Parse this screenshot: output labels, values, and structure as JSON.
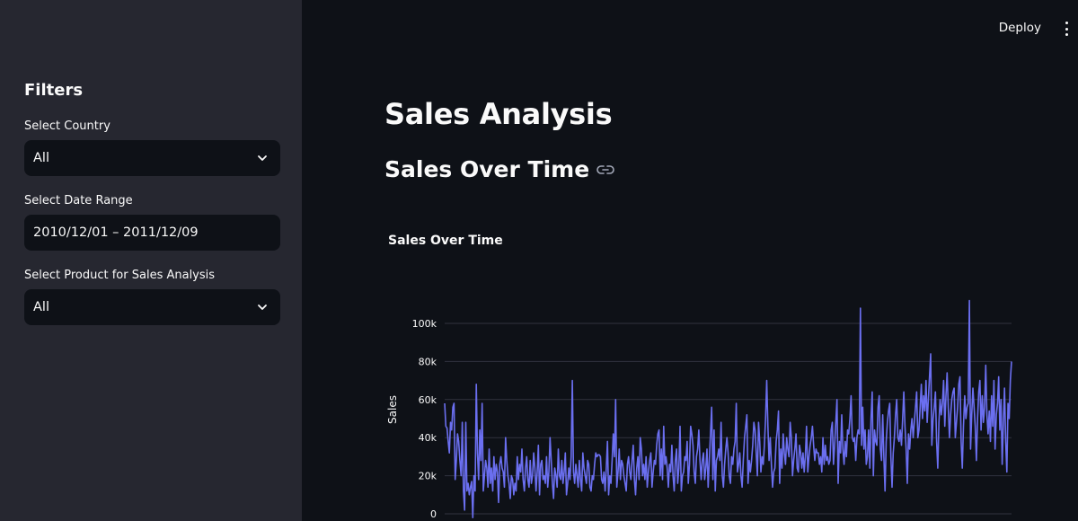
{
  "sidebar": {
    "title": "Filters",
    "country": {
      "label": "Select Country",
      "value": "All"
    },
    "date_range": {
      "label": "Select Date Range",
      "value": "2010/12/01 – 2011/12/09"
    },
    "product": {
      "label": "Select Product for Sales Analysis",
      "value": "All"
    }
  },
  "header": {
    "deploy_label": "Deploy"
  },
  "main": {
    "title": "Sales Analysis",
    "section_title": "Sales Over Time"
  },
  "colors": {
    "line": "#6b6ff0",
    "grid": "#31333f",
    "sidebar_bg": "#262730",
    "main_bg": "#0e1117"
  },
  "chart_data": {
    "type": "line",
    "title": "Sales Over Time",
    "xlabel": "",
    "ylabel": "Sales",
    "x_range": [
      "2010-12-01",
      "2011-12-09"
    ],
    "ylim": [
      0,
      110000
    ],
    "y_ticks": [
      0,
      20000,
      40000,
      60000,
      80000,
      100000
    ],
    "y_tick_labels": [
      "0",
      "20k",
      "40k",
      "60k",
      "80k",
      "100k"
    ],
    "grid": true,
    "series": [
      {
        "values": [
          58000,
          46000,
          45000,
          38000,
          32000,
          48000,
          44000,
          56000,
          58000,
          18000,
          28000,
          42000,
          38000,
          28000,
          20000,
          48000,
          12000,
          2000,
          48000,
          12000,
          16000,
          10000,
          14000,
          17000,
          -2000,
          20000,
          12000,
          68000,
          32000,
          18000,
          44000,
          28000,
          58000,
          12000,
          20000,
          28000,
          24000,
          14000,
          34000,
          16000,
          24000,
          12000,
          30000,
          18000,
          26000,
          22000,
          6000,
          26000,
          30000,
          24000,
          22000,
          14000,
          40000,
          28000,
          20000,
          16000,
          8000,
          20000,
          18000,
          10000,
          16000,
          12000,
          30000,
          18000,
          26000,
          22000,
          34000,
          18000,
          12000,
          24000,
          30000,
          18000,
          14000,
          28000,
          16000,
          20000,
          32000,
          24000,
          12000,
          22000,
          36000,
          10000,
          26000,
          28000,
          18000,
          20000,
          16000,
          30000,
          14000,
          22000,
          40000,
          28000,
          16000,
          8000,
          24000,
          20000,
          14000,
          34000,
          20000,
          18000,
          28000,
          16000,
          22000,
          32000,
          10000,
          16000,
          24000,
          18000,
          30000,
          70000,
          22000,
          16000,
          26000,
          20000,
          14000,
          28000,
          18000,
          12000,
          32000,
          24000,
          20000,
          16000,
          28000,
          26000,
          14000,
          12000,
          20000,
          18000,
          26000,
          32000,
          30000,
          31000,
          31000,
          30000,
          18000,
          16000,
          22000,
          12000,
          24000,
          38000,
          10000,
          20000,
          16000,
          28000,
          42000,
          30000,
          60000,
          14000,
          22000,
          34000,
          18000,
          28000,
          26000,
          20000,
          16000,
          12000,
          26000,
          30000,
          22000,
          18000,
          28000,
          36000,
          18000,
          10000,
          24000,
          30000,
          18000,
          40000,
          34000,
          20000,
          26000,
          18000,
          30000,
          14000,
          22000,
          28000,
          32000,
          14000,
          22000,
          28000,
          26000,
          36000,
          42000,
          44000,
          20000,
          34000,
          18000,
          46000,
          26000,
          30000,
          24000,
          14000,
          26000,
          22000,
          36000,
          20000,
          12000,
          28000,
          34000,
          16000,
          24000,
          46000,
          12000,
          20000,
          22000,
          30000,
          28000,
          38000,
          16000,
          26000,
          46000,
          42000,
          36000,
          22000,
          16000,
          30000,
          34000,
          44000,
          28000,
          18000,
          28000,
          32000,
          18000,
          24000,
          34000,
          14000,
          28000,
          42000,
          56000,
          18000,
          44000,
          12000,
          28000,
          30000,
          34000,
          28000,
          48000,
          20000,
          14000,
          26000,
          34000,
          40000,
          32000,
          20000,
          16000,
          30000,
          26000,
          34000,
          38000,
          58000,
          22000,
          26000,
          32000,
          20000,
          14000,
          28000,
          40000,
          46000,
          52000,
          16000,
          28000,
          22000,
          28000,
          36000,
          48000,
          44000,
          32000,
          20000,
          48000,
          38000,
          22000,
          30000,
          26000,
          36000,
          50000,
          70000,
          46000,
          28000,
          40000,
          26000,
          14000,
          22000,
          24000,
          38000,
          44000,
          54000,
          16000,
          34000,
          24000,
          42000,
          32000,
          26000,
          40000,
          34000,
          30000,
          48000,
          40000,
          20000,
          28000,
          34000,
          42000,
          24000,
          22000,
          36000,
          32000,
          24000,
          32000,
          22000,
          30000,
          46000,
          22000,
          30000,
          36000,
          40000,
          46000,
          36000,
          28000,
          34000,
          32000,
          32000,
          26000,
          30000,
          22000,
          40000,
          26000,
          36000,
          28000,
          30000,
          26000,
          28000,
          44000,
          48000,
          26000,
          36000,
          48000,
          60000,
          16000,
          38000,
          32000,
          52000,
          34000,
          26000,
          38000,
          30000,
          44000,
          42000,
          50000,
          62000,
          40000,
          38000,
          40000,
          28000,
          40000,
          44000,
          42000,
          108000,
          36000,
          56000,
          34000,
          44000,
          26000,
          30000,
          44000,
          24000,
          50000,
          64000,
          20000,
          44000,
          38000,
          36000,
          56000,
          62000,
          34000,
          28000,
          52000,
          30000,
          12000,
          38000,
          48000,
          54000,
          58000,
          30000,
          14000,
          32000,
          40000,
          52000,
          60000,
          40000,
          38000,
          44000,
          36000,
          50000,
          64000,
          46000,
          34000,
          16000,
          42000,
          34000,
          44000,
          50000,
          40000,
          48000,
          56000,
          64000,
          40000,
          44000,
          56000,
          68000,
          50000,
          62000,
          54000,
          70000,
          48000,
          60000,
          72000,
          84000,
          36000,
          50000,
          56000,
          64000,
          38000,
          24000,
          48000,
          60000,
          52000,
          58000,
          70000,
          46000,
          62000,
          74000,
          56000,
          40000,
          52000,
          60000,
          64000,
          66000,
          40000,
          48000,
          56000,
          68000,
          72000,
          38000,
          24000,
          46000,
          62000,
          50000,
          56000,
          58000,
          112000,
          34000,
          52000,
          66000,
          56000,
          46000,
          28000,
          50000,
          64000,
          70000,
          44000,
          62000,
          48000,
          56000,
          78000,
          52000,
          42000,
          54000,
          38000,
          62000,
          46000,
          70000,
          34000,
          52000,
          58000,
          72000,
          44000,
          60000,
          26000,
          48000,
          66000,
          38000,
          22000,
          58000,
          50000,
          70000,
          80000
        ]
      }
    ]
  }
}
